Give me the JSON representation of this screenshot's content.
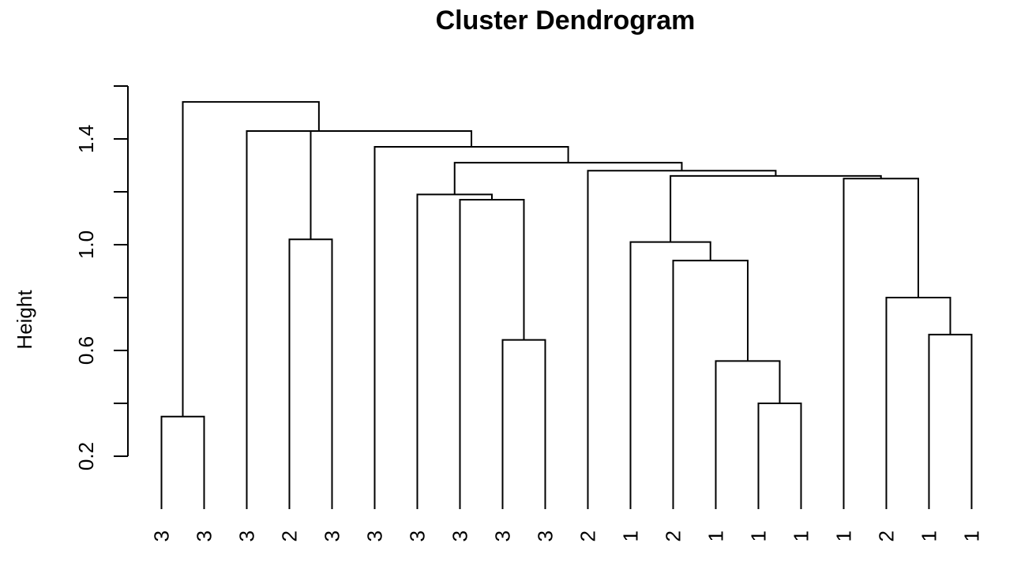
{
  "chart_data": {
    "type": "dendrogram",
    "title": "Cluster Dendrogram",
    "ylabel": "Height",
    "ylim": [
      0.0,
      1.6
    ],
    "yticks": [
      0.2,
      0.6,
      1.0,
      1.4
    ],
    "ytick_labels": [
      "0.2",
      "0.6",
      "1.0",
      "1.4"
    ],
    "leaf_labels": [
      "3",
      "3",
      "3",
      "2",
      "3",
      "3",
      "3",
      "3",
      "3",
      "3",
      "2",
      "1",
      "2",
      "1",
      "1",
      "1",
      "1",
      "2",
      "1",
      "1"
    ],
    "merges": [
      {
        "left": -1,
        "right": -2,
        "height": 0.35
      },
      {
        "left": -4,
        "right": -5,
        "height": 1.02
      },
      {
        "left": -9,
        "right": -10,
        "height": 0.64
      },
      {
        "left": -8,
        "right": 3,
        "height": 1.17
      },
      {
        "left": -7,
        "right": 4,
        "height": 1.19
      },
      {
        "left": -15,
        "right": -16,
        "height": 0.4
      },
      {
        "left": -14,
        "right": 6,
        "height": 0.56
      },
      {
        "left": -13,
        "right": 7,
        "height": 0.94
      },
      {
        "left": -12,
        "right": 8,
        "height": 1.01
      },
      {
        "left": -19,
        "right": -20,
        "height": 0.66
      },
      {
        "left": -18,
        "right": 10,
        "height": 0.8
      },
      {
        "left": -17,
        "right": 11,
        "height": 1.25
      },
      {
        "left": 9,
        "right": 12,
        "height": 1.26
      },
      {
        "left": -11,
        "right": 13,
        "height": 1.28
      },
      {
        "left": 5,
        "right": 14,
        "height": 1.31
      },
      {
        "left": -6,
        "right": 15,
        "height": 1.37
      },
      {
        "left": 2,
        "right": 16,
        "height": 1.43
      },
      {
        "left": -3,
        "right": 17,
        "height": 1.43
      },
      {
        "left": 1,
        "right": 18,
        "height": 1.54
      }
    ]
  }
}
